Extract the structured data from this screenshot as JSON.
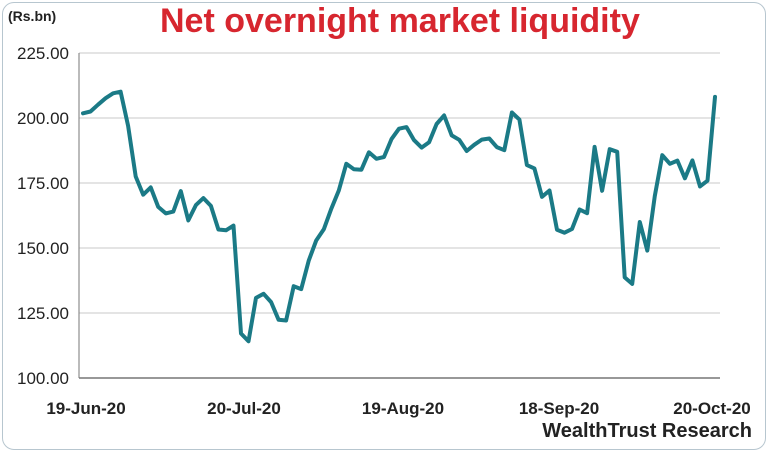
{
  "title": "Net overnight market liquidity",
  "unit_label": "(Rs.bn)",
  "source": "WealthTrust Research",
  "colors": {
    "line": "#1b7a86",
    "title": "#d7262f",
    "grid": "#c9c9c9"
  },
  "chart_data": {
    "type": "line",
    "title": "Net overnight market liquidity",
    "ylabel": "(Rs.bn)",
    "xlabel": "",
    "ylim": [
      100,
      225
    ],
    "yticks": [
      "225.00",
      "200.00",
      "175.00",
      "150.00",
      "125.00",
      "100.00"
    ],
    "xticks": [
      "19-Jun-20",
      "20-Jul-20",
      "19-Aug-20",
      "18-Sep-20",
      "20-Oct-20"
    ],
    "grid": "horizontal",
    "series": [
      {
        "values": [
          201.8,
          202.5,
          205.1,
          207.6,
          209.5,
          210.1,
          197.0,
          177.5,
          170.5,
          173.3,
          165.8,
          163.3,
          164.0,
          171.9,
          160.6,
          166.5,
          169.2,
          166.2,
          157.1,
          156.8,
          158.6,
          117.1,
          114.1,
          130.8,
          132.4,
          129.2,
          122.4,
          122.1,
          135.3,
          134.2,
          145.1,
          152.9,
          157.2,
          165.1,
          172.1,
          182.4,
          180.3,
          180.1,
          186.8,
          184.3,
          185.0,
          191.9,
          195.9,
          196.5,
          191.5,
          188.6,
          190.7,
          197.7,
          201.0,
          193.3,
          191.6,
          187.3,
          189.7,
          191.7,
          192.1,
          188.8,
          187.6,
          202.1,
          199.4,
          181.9,
          180.6,
          169.7,
          172.1,
          157.0,
          155.9,
          157.3,
          164.8,
          163.4,
          188.9,
          172.0,
          188.0,
          187.0,
          138.7,
          136.2,
          160.0,
          149.0,
          170.0,
          185.7,
          182.4,
          183.6,
          176.8,
          183.7,
          173.7,
          175.9,
          208.1
        ]
      }
    ]
  }
}
